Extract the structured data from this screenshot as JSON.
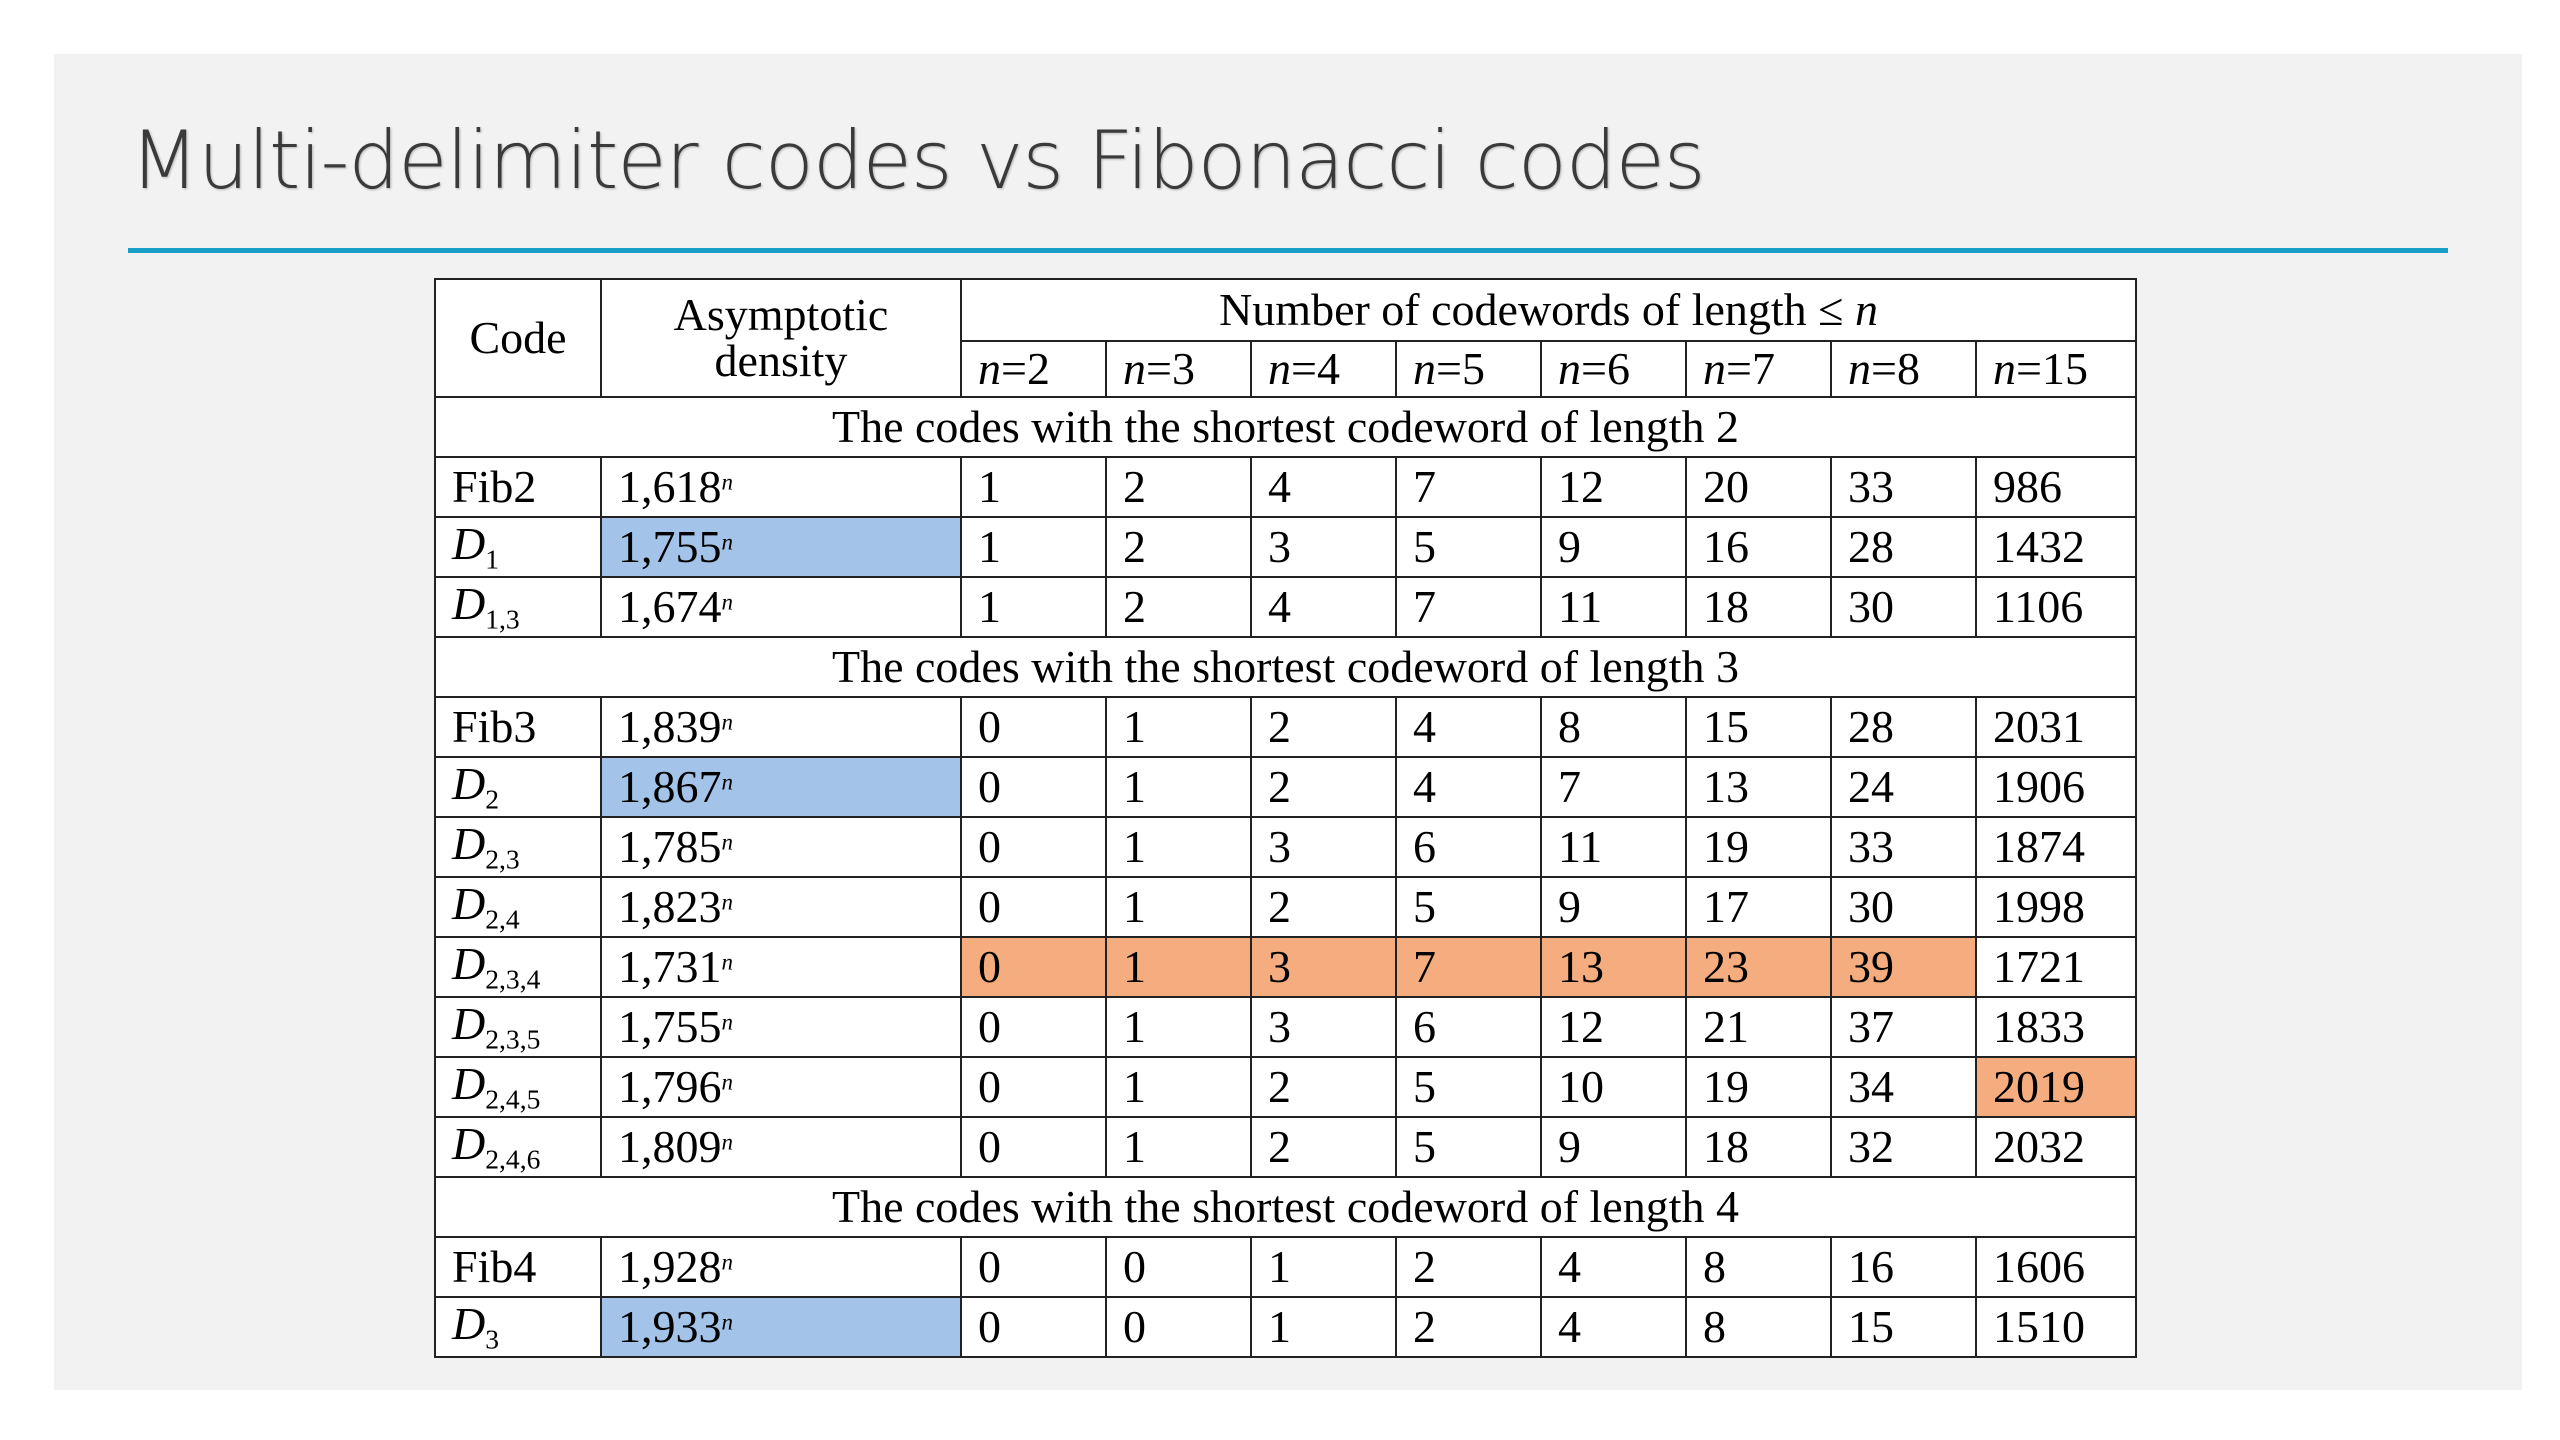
{
  "title": "Multi-delimiter codes vs Fibonacci codes",
  "colors": {
    "accent_rule": "#1aa0c8",
    "highlight_blue": "#a3c4e8",
    "highlight_orange": "#f5ad7f"
  },
  "table": {
    "header_code": "Code",
    "header_density_line1": "Asymptotic",
    "header_density_line2": "density",
    "header_group": "Number of codewords of length ≤ ",
    "header_group_var": "n",
    "n_var": "n",
    "n_cols": [
      "=2",
      "=3",
      "=4",
      "=5",
      "=6",
      "=7",
      "=8",
      "=15"
    ],
    "density_exp": "n",
    "sections": [
      {
        "title": "The codes with the shortest codeword of length 2",
        "rows": [
          {
            "code": "Fib2",
            "sub": "",
            "density": "1,618",
            "values": [
              "1",
              "2",
              "4",
              "7",
              "12",
              "20",
              "33",
              "986"
            ]
          },
          {
            "code": "D",
            "sub": "1",
            "density": "1,755",
            "values": [
              "1",
              "2",
              "3",
              "5",
              "9",
              "16",
              "28",
              "1432"
            ]
          },
          {
            "code": "D",
            "sub": "1,3",
            "density": "1,674",
            "values": [
              "1",
              "2",
              "4",
              "7",
              "11",
              "18",
              "30",
              "1106"
            ]
          }
        ]
      },
      {
        "title": "The codes with the shortest codeword of length 3",
        "rows": [
          {
            "code": "Fib3",
            "sub": "",
            "density": "1,839",
            "values": [
              "0",
              "1",
              "2",
              "4",
              "8",
              "15",
              "28",
              "2031"
            ]
          },
          {
            "code": "D",
            "sub": "2",
            "density": "1,867",
            "values": [
              "0",
              "1",
              "2",
              "4",
              "7",
              "13",
              "24",
              "1906"
            ]
          },
          {
            "code": "D",
            "sub": "2,3",
            "density": "1,785",
            "values": [
              "0",
              "1",
              "3",
              "6",
              "11",
              "19",
              "33",
              "1874"
            ]
          },
          {
            "code": "D",
            "sub": "2,4",
            "density": "1,823",
            "values": [
              "0",
              "1",
              "2",
              "5",
              "9",
              "17",
              "30",
              "1998"
            ]
          },
          {
            "code": "D",
            "sub": "2,3,4",
            "density": "1,731",
            "values": [
              "0",
              "1",
              "3",
              "7",
              "13",
              "23",
              "39",
              "1721"
            ]
          },
          {
            "code": "D",
            "sub": "2,3,5",
            "density": "1,755",
            "values": [
              "0",
              "1",
              "3",
              "6",
              "12",
              "21",
              "37",
              "1833"
            ]
          },
          {
            "code": "D",
            "sub": "2,4,5",
            "density": "1,796",
            "values": [
              "0",
              "1",
              "2",
              "5",
              "10",
              "19",
              "34",
              "2019"
            ]
          },
          {
            "code": "D",
            "sub": "2,4,6",
            "density": "1,809",
            "values": [
              "0",
              "1",
              "2",
              "5",
              "9",
              "18",
              "32",
              "2032"
            ]
          }
        ]
      },
      {
        "title": "The codes with the shortest codeword of length 4",
        "rows": [
          {
            "code": "Fib4",
            "sub": "",
            "density": "1,928",
            "values": [
              "0",
              "0",
              "1",
              "2",
              "4",
              "8",
              "16",
              "1606"
            ]
          },
          {
            "code": "D",
            "sub": "3",
            "density": "1,933",
            "values": [
              "0",
              "0",
              "1",
              "2",
              "4",
              "8",
              "15",
              "1510"
            ]
          }
        ]
      }
    ]
  }
}
